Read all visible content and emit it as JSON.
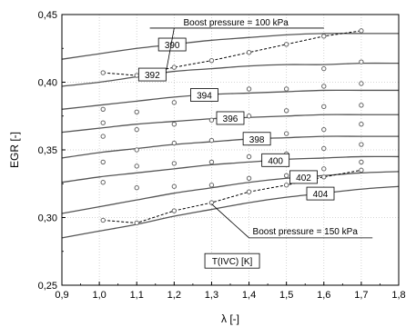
{
  "chart_data": {
    "type": "line",
    "xlabel": "λ [-]",
    "ylabel": "EGR [-]",
    "xlim": [
      0.9,
      1.8
    ],
    "ylim": [
      0.25,
      0.45
    ],
    "x_ticks": [
      "0,9",
      "1,0",
      "1,1",
      "1,2",
      "1,3",
      "1,4",
      "1,5",
      "1,6",
      "1,7",
      "1,8"
    ],
    "y_ticks": [
      "0,25",
      "0,30",
      "0,35",
      "0,40",
      "0,45"
    ],
    "grid": true,
    "legend_title": "T(IVC) [K]",
    "series": [
      {
        "name": "390",
        "x": [
          0.9,
          1.0,
          1.1,
          1.2,
          1.3,
          1.4,
          1.5,
          1.6,
          1.7,
          1.8
        ],
        "y": [
          0.417,
          0.421,
          0.425,
          0.428,
          0.431,
          0.433,
          0.435,
          0.436,
          0.436,
          0.436
        ]
      },
      {
        "name": "392",
        "x": [
          0.9,
          1.0,
          1.1,
          1.2,
          1.3,
          1.4,
          1.5,
          1.6,
          1.7,
          1.8
        ],
        "y": [
          0.397,
          0.4,
          0.404,
          0.408,
          0.41,
          0.412,
          0.413,
          0.413,
          0.414,
          0.414
        ]
      },
      {
        "name": "394",
        "x": [
          0.9,
          1.0,
          1.1,
          1.2,
          1.3,
          1.4,
          1.5,
          1.6,
          1.7,
          1.8
        ],
        "y": [
          0.38,
          0.383,
          0.386,
          0.389,
          0.391,
          0.392,
          0.393,
          0.394,
          0.394,
          0.394
        ]
      },
      {
        "name": "396",
        "x": [
          0.9,
          1.0,
          1.1,
          1.2,
          1.3,
          1.4,
          1.5,
          1.6,
          1.7,
          1.8
        ],
        "y": [
          0.363,
          0.366,
          0.369,
          0.371,
          0.373,
          0.374,
          0.375,
          0.376,
          0.376,
          0.376
        ]
      },
      {
        "name": "398",
        "x": [
          0.9,
          1.0,
          1.1,
          1.2,
          1.3,
          1.4,
          1.5,
          1.6,
          1.7,
          1.8
        ],
        "y": [
          0.344,
          0.348,
          0.351,
          0.354,
          0.356,
          0.358,
          0.359,
          0.36,
          0.36,
          0.36
        ]
      },
      {
        "name": "400",
        "x": [
          0.9,
          1.0,
          1.1,
          1.2,
          1.3,
          1.4,
          1.5,
          1.6,
          1.7,
          1.8
        ],
        "y": [
          0.326,
          0.33,
          0.333,
          0.336,
          0.339,
          0.341,
          0.343,
          0.344,
          0.345,
          0.345
        ]
      },
      {
        "name": "402",
        "x": [
          0.9,
          1.0,
          1.1,
          1.2,
          1.3,
          1.4,
          1.5,
          1.6,
          1.7,
          1.8
        ],
        "y": [
          0.303,
          0.308,
          0.313,
          0.318,
          0.322,
          0.326,
          0.329,
          0.331,
          0.333,
          0.334
        ]
      },
      {
        "name": "404",
        "x": [
          0.9,
          1.0,
          1.1,
          1.2,
          1.3,
          1.4,
          1.5,
          1.6,
          1.7,
          1.8
        ],
        "y": [
          0.285,
          0.29,
          0.295,
          0.301,
          0.306,
          0.311,
          0.315,
          0.318,
          0.321,
          0.323
        ]
      }
    ],
    "scatter_points": [
      {
        "x": 1.01,
        "y": 0.407
      },
      {
        "x": 1.1,
        "y": 0.405
      },
      {
        "x": 1.2,
        "y": 0.411
      },
      {
        "x": 1.3,
        "y": 0.416
      },
      {
        "x": 1.4,
        "y": 0.422
      },
      {
        "x": 1.5,
        "y": 0.428
      },
      {
        "x": 1.6,
        "y": 0.434
      },
      {
        "x": 1.7,
        "y": 0.438
      },
      {
        "x": 1.6,
        "y": 0.41
      },
      {
        "x": 1.7,
        "y": 0.415
      },
      {
        "x": 1.01,
        "y": 0.38
      },
      {
        "x": 1.1,
        "y": 0.378
      },
      {
        "x": 1.2,
        "y": 0.385
      },
      {
        "x": 1.3,
        "y": 0.392
      },
      {
        "x": 1.4,
        "y": 0.395
      },
      {
        "x": 1.5,
        "y": 0.395
      },
      {
        "x": 1.6,
        "y": 0.397
      },
      {
        "x": 1.7,
        "y": 0.399
      },
      {
        "x": 1.01,
        "y": 0.37
      },
      {
        "x": 1.1,
        "y": 0.365
      },
      {
        "x": 1.2,
        "y": 0.369
      },
      {
        "x": 1.3,
        "y": 0.372
      },
      {
        "x": 1.4,
        "y": 0.375
      },
      {
        "x": 1.5,
        "y": 0.379
      },
      {
        "x": 1.6,
        "y": 0.382
      },
      {
        "x": 1.7,
        "y": 0.383
      },
      {
        "x": 1.01,
        "y": 0.36
      },
      {
        "x": 1.1,
        "y": 0.35
      },
      {
        "x": 1.2,
        "y": 0.355
      },
      {
        "x": 1.3,
        "y": 0.357
      },
      {
        "x": 1.4,
        "y": 0.358
      },
      {
        "x": 1.5,
        "y": 0.362
      },
      {
        "x": 1.6,
        "y": 0.365
      },
      {
        "x": 1.7,
        "y": 0.369
      },
      {
        "x": 1.01,
        "y": 0.341
      },
      {
        "x": 1.1,
        "y": 0.338
      },
      {
        "x": 1.2,
        "y": 0.34
      },
      {
        "x": 1.3,
        "y": 0.341
      },
      {
        "x": 1.4,
        "y": 0.345
      },
      {
        "x": 1.5,
        "y": 0.347
      },
      {
        "x": 1.6,
        "y": 0.351
      },
      {
        "x": 1.7,
        "y": 0.354
      },
      {
        "x": 1.01,
        "y": 0.326
      },
      {
        "x": 1.1,
        "y": 0.322
      },
      {
        "x": 1.2,
        "y": 0.323
      },
      {
        "x": 1.3,
        "y": 0.324
      },
      {
        "x": 1.4,
        "y": 0.329
      },
      {
        "x": 1.5,
        "y": 0.331
      },
      {
        "x": 1.6,
        "y": 0.336
      },
      {
        "x": 1.7,
        "y": 0.341
      },
      {
        "x": 1.01,
        "y": 0.298
      },
      {
        "x": 1.1,
        "y": 0.296
      },
      {
        "x": 1.2,
        "y": 0.305
      },
      {
        "x": 1.3,
        "y": 0.311
      },
      {
        "x": 1.4,
        "y": 0.319
      },
      {
        "x": 1.5,
        "y": 0.324
      },
      {
        "x": 1.6,
        "y": 0.33
      },
      {
        "x": 1.7,
        "y": 0.335
      }
    ],
    "dashed_lines": [
      {
        "name": "Boost pressure = 100 kPa",
        "x": [
          1.01,
          1.1,
          1.2,
          1.3,
          1.4,
          1.5,
          1.6,
          1.7
        ],
        "y": [
          0.407,
          0.405,
          0.411,
          0.416,
          0.422,
          0.428,
          0.434,
          0.438
        ]
      },
      {
        "name": "Boost pressure = 150 kPa",
        "x": [
          1.01,
          1.1,
          1.2,
          1.3,
          1.4,
          1.5,
          1.6,
          1.7
        ],
        "y": [
          0.298,
          0.296,
          0.305,
          0.311,
          0.319,
          0.324,
          0.33,
          0.335
        ]
      }
    ],
    "annotations": [
      {
        "text": "Boost pressure = 100 kPa",
        "x": 1.365,
        "y": 0.442
      },
      {
        "text": "Boost pressure = 150 kPa",
        "x": 1.55,
        "y": 0.285
      }
    ]
  }
}
